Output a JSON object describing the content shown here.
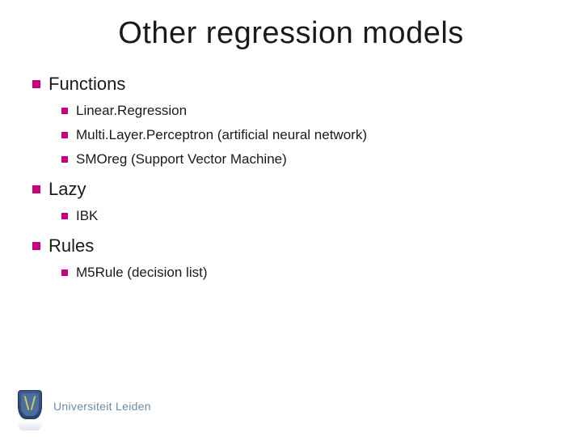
{
  "title": "Other regression models",
  "accent_color": "#c8007d",
  "text_color": "#1a1a1a",
  "background_color": "#ffffff",
  "title_fontsize": 38,
  "section_fontsize": 22,
  "item_fontsize": 17,
  "sections": [
    {
      "label": "Functions",
      "items": [
        "Linear.Regression",
        "Multi.Layer.Perceptron (artificial neural network)",
        "SMOreg (Support Vector Machine)"
      ]
    },
    {
      "label": "Lazy",
      "items": [
        "IBK"
      ]
    },
    {
      "label": "Rules",
      "items": [
        "M5Rule (decision list)"
      ]
    }
  ],
  "footer": {
    "org": "Universiteit Leiden",
    "logo_color": "#3a5a8a",
    "footer_text_color": "#6f8aa6"
  }
}
